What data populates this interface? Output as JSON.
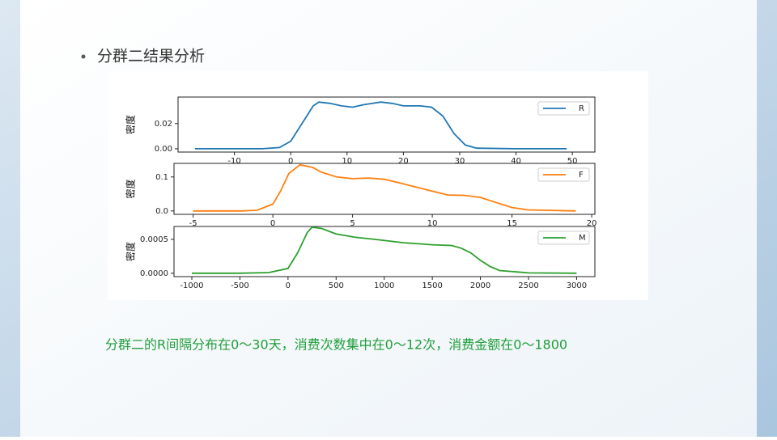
{
  "slide": {
    "bullet": "分群二结果分析",
    "caption": "分群二的R间隔分布在0～30天，消费次数集中在0～12次，消费金额在0～1800"
  },
  "chart_data": [
    {
      "type": "line",
      "ylabel": "密度",
      "legend": "upper right",
      "x": [
        -17,
        -10,
        -5,
        -2,
        0,
        2,
        4,
        5,
        7,
        9,
        11,
        13,
        16,
        18,
        20,
        23,
        25,
        27,
        29,
        31,
        33,
        40,
        49
      ],
      "series": [
        {
          "name": "R",
          "color": "#1f77b4",
          "values": [
            0,
            0,
            0,
            0.001,
            0.006,
            0.02,
            0.034,
            0.037,
            0.036,
            0.034,
            0.033,
            0.035,
            0.037,
            0.036,
            0.034,
            0.034,
            0.033,
            0.026,
            0.012,
            0.003,
            0.0005,
            0,
            0
          ]
        }
      ],
      "xlim": [
        -20,
        54
      ],
      "ylim": [
        -0.0026,
        0.041
      ],
      "xticks": [
        -10,
        0,
        10,
        20,
        30,
        40,
        50
      ],
      "yticks": [
        {
          "value": 0,
          "label": "0.00"
        },
        {
          "value": 0.02,
          "label": "0.02"
        }
      ]
    },
    {
      "type": "line",
      "ylabel": "密度",
      "legend": "upper right",
      "x": [
        -5,
        -2,
        -1,
        0,
        0.5,
        1,
        1.7,
        2.5,
        3,
        4,
        5,
        6,
        7,
        8,
        9,
        10,
        11,
        12,
        13,
        14,
        15,
        16,
        19
      ],
      "series": [
        {
          "name": "F",
          "color": "#ff7f0e",
          "values": [
            0,
            0,
            0.002,
            0.02,
            0.06,
            0.11,
            0.136,
            0.128,
            0.115,
            0.1,
            0.095,
            0.097,
            0.093,
            0.082,
            0.07,
            0.058,
            0.047,
            0.046,
            0.04,
            0.025,
            0.01,
            0.003,
            0
          ]
        }
      ],
      "xlim": [
        -6.2,
        20.2
      ],
      "ylim": [
        -0.01,
        0.14
      ],
      "xticks": [
        -5,
        0,
        5,
        10,
        15,
        20
      ],
      "yticks": [
        {
          "value": 0,
          "label": "0.0"
        },
        0.1
      ]
    },
    {
      "type": "line",
      "ylabel": "密度",
      "legend": "upper right",
      "x": [
        -1000,
        -500,
        -200,
        0,
        100,
        200,
        250,
        350,
        500,
        700,
        900,
        1200,
        1500,
        1700,
        1800,
        1900,
        2000,
        2100,
        2200,
        2500,
        3000
      ],
      "series": [
        {
          "name": "M",
          "color": "#2ca02c",
          "values": [
            0,
            0,
            1e-05,
            7e-05,
            0.0003,
            0.0006,
            0.00068,
            0.00066,
            0.00058,
            0.00053,
            0.0005,
            0.00045,
            0.00042,
            0.00041,
            0.00037,
            0.0003,
            0.00019,
            0.0001,
            4e-05,
            5e-06,
            0
          ]
        }
      ],
      "xlim": [
        -1185,
        3190
      ],
      "ylim": [
        -5e-05,
        0.00069
      ],
      "xticks": [
        -1000,
        -500,
        0,
        500,
        1000,
        1500,
        2000,
        2500,
        3000
      ],
      "yticks": [
        {
          "value": 0,
          "label": "0.0000"
        },
        {
          "value": 0.0005,
          "label": "0.0005"
        }
      ]
    }
  ]
}
